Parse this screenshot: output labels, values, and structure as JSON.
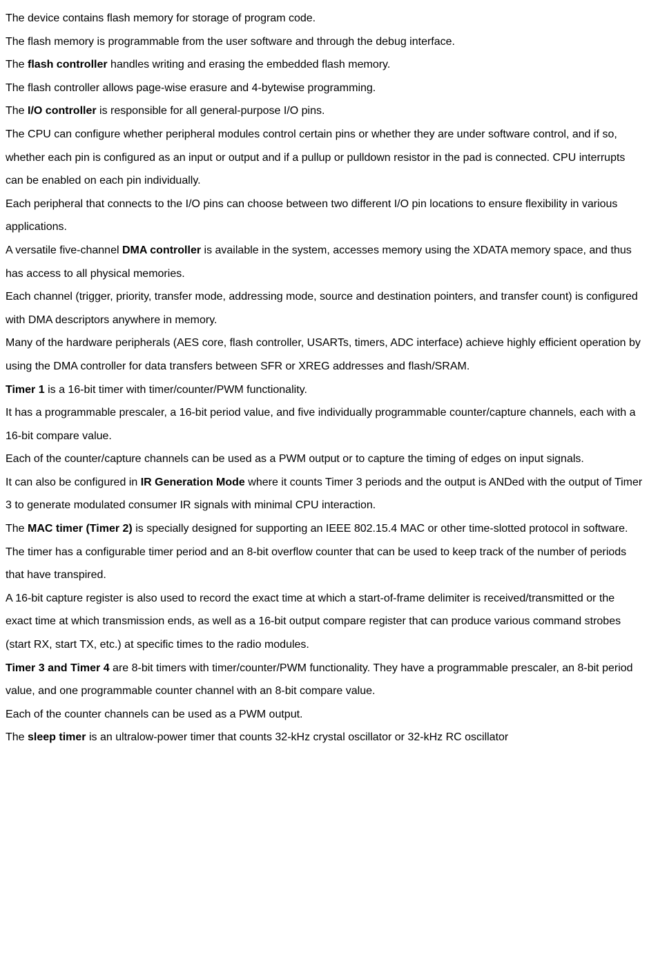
{
  "document": {
    "text_color": "#000000",
    "background_color": "#ffffff",
    "font_family": "Arial, Helvetica, sans-serif",
    "font_size": 16,
    "line_height": 2.1,
    "paragraphs": [
      {
        "segments": [
          {
            "text": "The device contains flash memory for storage of program code.",
            "bold": false
          }
        ]
      },
      {
        "segments": [
          {
            "text": "The flash memory is programmable from the user software and through the debug interface.",
            "bold": false
          }
        ]
      },
      {
        "segments": [
          {
            "text": "The ",
            "bold": false
          },
          {
            "text": "flash controller",
            "bold": true
          },
          {
            "text": " handles writing and erasing the embedded flash memory.",
            "bold": false
          }
        ]
      },
      {
        "segments": [
          {
            "text": "The flash controller allows page-wise erasure and 4-bytewise programming.",
            "bold": false
          }
        ]
      },
      {
        "segments": [
          {
            "text": "The ",
            "bold": false
          },
          {
            "text": "I/O controller",
            "bold": true
          },
          {
            "text": " is responsible for all general-purpose I/O pins.",
            "bold": false
          }
        ]
      },
      {
        "segments": [
          {
            "text": "The CPU can configure whether peripheral modules control certain pins or whether they are under software control, and if so, whether each pin is configured as an input or output and if a pullup or pulldown resistor in the pad is connected. CPU interrupts can be enabled on each pin individually.",
            "bold": false
          }
        ]
      },
      {
        "segments": [
          {
            "text": "Each peripheral that connects to the I/O pins can choose between two different I/O pin locations to ensure flexibility in various applications.",
            "bold": false
          }
        ]
      },
      {
        "segments": [
          {
            "text": "A versatile five-channel ",
            "bold": false
          },
          {
            "text": "DMA controller",
            "bold": true
          },
          {
            "text": " is available in the system, accesses memory using the XDATA memory space, and thus has access to all physical memories.",
            "bold": false
          }
        ]
      },
      {
        "segments": [
          {
            "text": "Each channel (trigger, priority, transfer mode, addressing mode, source and destination pointers, and transfer count) is configured with DMA descriptors anywhere in memory.",
            "bold": false
          }
        ]
      },
      {
        "segments": [
          {
            "text": "Many of the hardware peripherals (AES core, flash controller, USARTs, timers, ADC interface) achieve highly efficient operation by using the DMA controller for data transfers between SFR or XREG addresses and flash/SRAM.",
            "bold": false
          }
        ]
      },
      {
        "segments": [
          {
            "text": "Timer 1",
            "bold": true
          },
          {
            "text": " is a 16-bit timer with timer/counter/PWM functionality.",
            "bold": false
          }
        ]
      },
      {
        "segments": [
          {
            "text": "It has a programmable prescaler, a 16-bit period value, and five individually programmable counter/capture channels, each with a 16-bit compare value.",
            "bold": false
          }
        ]
      },
      {
        "segments": [
          {
            "text": "Each of the counter/capture channels can be used as a PWM output or to capture the timing of edges on input signals.",
            "bold": false
          }
        ]
      },
      {
        "segments": [
          {
            "text": "It can also be configured in ",
            "bold": false
          },
          {
            "text": "IR Generation Mode",
            "bold": true
          },
          {
            "text": " where it counts Timer 3 periods and the output is ANDed with the output of Timer 3 to generate modulated consumer IR signals with minimal CPU interaction.",
            "bold": false
          }
        ]
      },
      {
        "segments": [
          {
            "text": "The ",
            "bold": false
          },
          {
            "text": "MAC timer (Timer 2)",
            "bold": true
          },
          {
            "text": " is specially designed for supporting an IEEE 802.15.4 MAC or other time-slotted protocol in software.",
            "bold": false
          }
        ]
      },
      {
        "segments": [
          {
            "text": "The timer has a configurable timer period and an 8-bit overflow counter that can be used to keep track of the number of periods that have transpired.",
            "bold": false
          }
        ]
      },
      {
        "segments": [
          {
            "text": "A 16-bit capture register is also used to record the exact time at which a start-of-frame delimiter is received/transmitted or the exact time at which transmission ends, as well as a 16-bit output compare register that can produce various command strobes (start RX, start TX, etc.) at specific times to the radio modules.",
            "bold": false
          }
        ]
      },
      {
        "segments": [
          {
            "text": "Timer 3 and Timer 4",
            "bold": true
          },
          {
            "text": " are 8-bit timers with timer/counter/PWM functionality. They have a programmable prescaler, an 8-bit period value, and one programmable counter channel with an 8-bit compare value.",
            "bold": false
          }
        ]
      },
      {
        "segments": [
          {
            "text": "Each of the counter channels can be used as a PWM output.",
            "bold": false
          }
        ]
      },
      {
        "segments": [
          {
            "text": "The ",
            "bold": false
          },
          {
            "text": "sleep timer",
            "bold": true
          },
          {
            "text": " is an ultralow-power timer that counts 32-kHz crystal oscillator or 32-kHz RC oscillator",
            "bold": false
          }
        ]
      }
    ]
  }
}
